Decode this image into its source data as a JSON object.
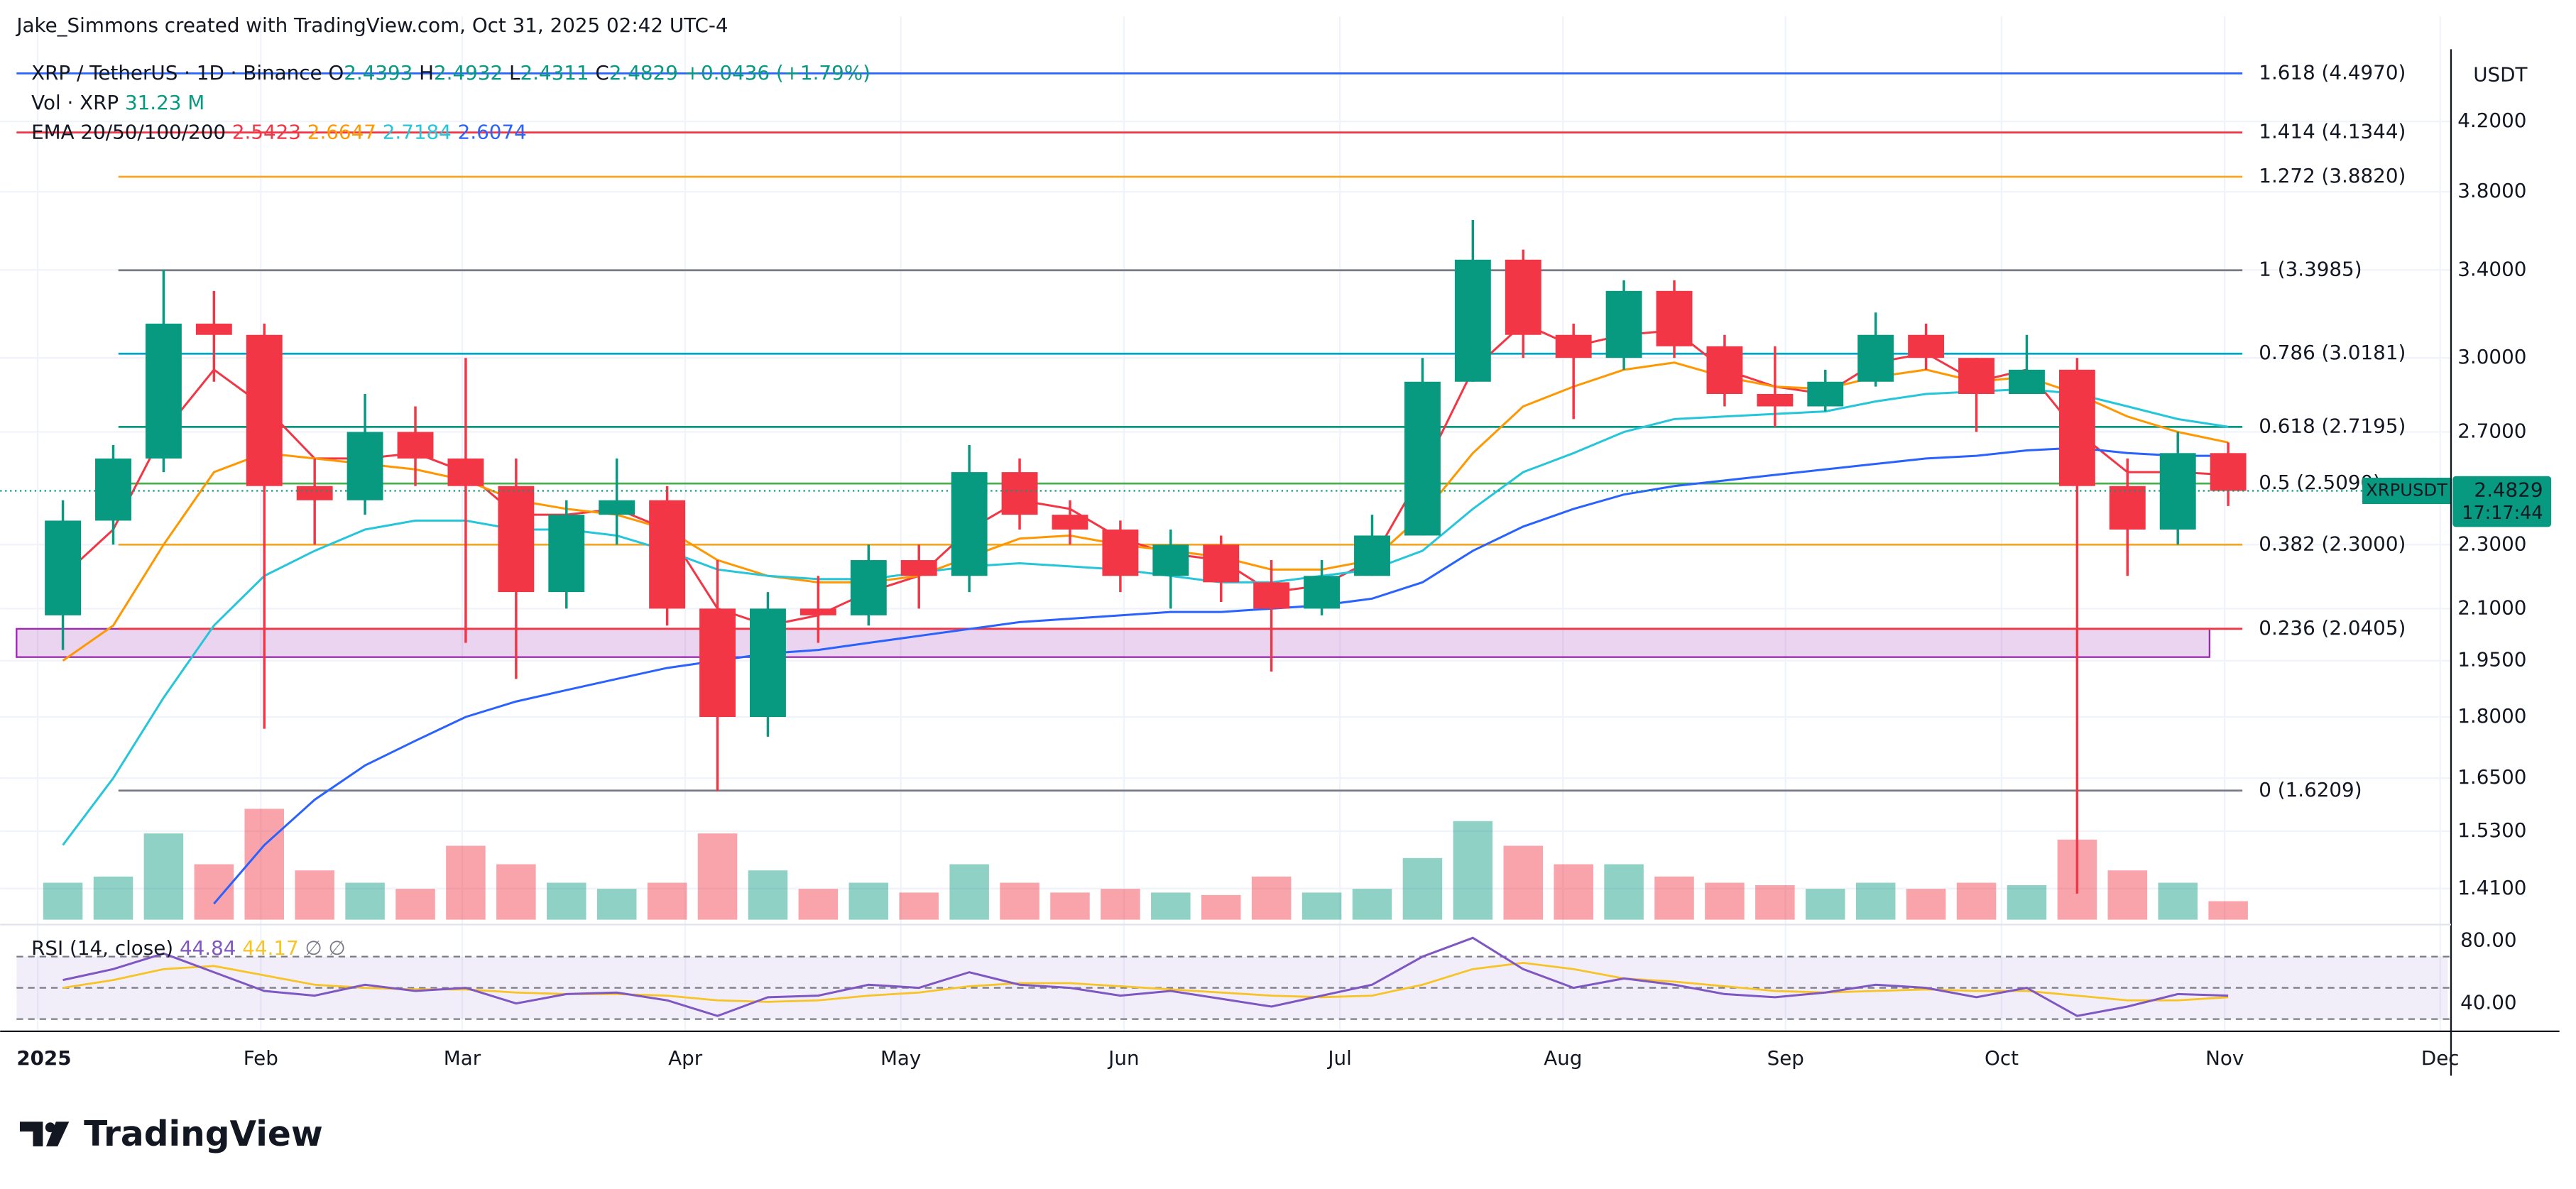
{
  "chart_data": {
    "type": "candlestick",
    "attribution": "Jake_Simmons created with TradingView.com, Oct 31, 2025 02:42 UTC-4",
    "title": "XRP / TetherUS · 1D · Binance",
    "last_bar": {
      "labels": [
        "O",
        "H",
        "L",
        "C"
      ],
      "values": [
        2.4393,
        2.4932,
        2.4311,
        2.4829
      ],
      "change": "+0.0436 (+1.79%)"
    },
    "currency": "USDT",
    "symbol": "XRPUSDT",
    "countdown": "17:17:44",
    "up_color": "#089981",
    "down_color": "#f23645",
    "open": [
      2.08,
      2.38,
      2.6,
      3.15,
      3.1,
      2.5,
      2.45,
      2.7,
      2.6,
      2.5,
      2.15,
      2.4,
      2.45,
      2.1,
      1.8,
      2.1,
      2.08,
      2.25,
      2.2,
      2.55,
      2.4,
      2.35,
      2.2,
      2.3,
      2.18,
      2.1,
      2.2,
      2.33,
      2.9,
      3.45,
      3.1,
      3.0,
      3.3,
      3.05,
      2.85,
      2.8,
      2.9,
      3.1,
      3.0,
      2.85,
      2.95,
      2.5,
      2.35,
      2.62
    ],
    "high": [
      2.45,
      2.65,
      3.4,
      3.3,
      3.15,
      2.6,
      2.85,
      2.8,
      3.0,
      2.6,
      2.45,
      2.6,
      2.5,
      2.25,
      2.15,
      2.2,
      2.3,
      2.3,
      2.65,
      2.6,
      2.45,
      2.38,
      2.35,
      2.33,
      2.25,
      2.25,
      2.4,
      3.0,
      3.65,
      3.5,
      3.15,
      3.35,
      3.35,
      3.1,
      3.05,
      2.95,
      3.2,
      3.15,
      3.0,
      3.1,
      3.0,
      2.6,
      2.7,
      2.66
    ],
    "low": [
      1.98,
      2.3,
      2.55,
      2.9,
      1.77,
      2.3,
      2.4,
      2.5,
      2.0,
      1.9,
      2.1,
      2.3,
      2.05,
      1.62,
      1.75,
      2.0,
      2.05,
      2.1,
      2.15,
      2.35,
      2.3,
      2.15,
      2.1,
      2.12,
      1.92,
      2.08,
      2.2,
      2.33,
      2.9,
      3.0,
      2.75,
      2.95,
      3.0,
      2.8,
      2.72,
      2.78,
      2.88,
      2.95,
      2.7,
      2.85,
      1.4,
      2.2,
      2.3,
      2.43
    ],
    "close": [
      2.38,
      2.6,
      3.15,
      3.1,
      2.5,
      2.45,
      2.7,
      2.6,
      2.5,
      2.15,
      2.4,
      2.45,
      2.1,
      1.8,
      2.1,
      2.08,
      2.25,
      2.2,
      2.55,
      2.4,
      2.35,
      2.2,
      2.3,
      2.18,
      2.1,
      2.2,
      2.33,
      2.9,
      3.45,
      3.1,
      3.0,
      3.3,
      3.05,
      2.85,
      2.8,
      2.9,
      3.1,
      3.0,
      2.85,
      2.95,
      2.5,
      2.35,
      2.62,
      2.4829
    ],
    "ema_label": "EMA 20/50/100/200",
    "series": [
      {
        "color": "#f23645",
        "last": 2.5423,
        "values": [
          2.2,
          2.35,
          2.7,
          2.95,
          2.8,
          2.6,
          2.6,
          2.62,
          2.55,
          2.4,
          2.4,
          2.42,
          2.35,
          2.1,
          2.05,
          2.08,
          2.15,
          2.2,
          2.35,
          2.45,
          2.42,
          2.32,
          2.27,
          2.25,
          2.15,
          2.17,
          2.25,
          2.55,
          2.95,
          3.15,
          3.05,
          3.1,
          3.12,
          2.95,
          2.88,
          2.85,
          2.98,
          3.02,
          2.9,
          2.95,
          2.7,
          2.55,
          2.55,
          2.54
        ]
      },
      {
        "color": "#ff9800",
        "last": 2.6647,
        "values": [
          1.95,
          2.05,
          2.3,
          2.55,
          2.62,
          2.6,
          2.58,
          2.56,
          2.52,
          2.45,
          2.42,
          2.4,
          2.35,
          2.25,
          2.2,
          2.18,
          2.18,
          2.2,
          2.26,
          2.32,
          2.33,
          2.3,
          2.28,
          2.26,
          2.22,
          2.22,
          2.25,
          2.4,
          2.62,
          2.8,
          2.88,
          2.95,
          2.98,
          2.92,
          2.88,
          2.87,
          2.92,
          2.95,
          2.9,
          2.92,
          2.85,
          2.76,
          2.7,
          2.66
        ]
      },
      {
        "color": "#26c6da",
        "last": 2.7184,
        "values": [
          1.5,
          1.65,
          1.85,
          2.05,
          2.2,
          2.28,
          2.35,
          2.38,
          2.38,
          2.35,
          2.35,
          2.33,
          2.28,
          2.22,
          2.2,
          2.19,
          2.19,
          2.21,
          2.23,
          2.24,
          2.23,
          2.22,
          2.2,
          2.18,
          2.18,
          2.2,
          2.22,
          2.28,
          2.42,
          2.55,
          2.62,
          2.7,
          2.75,
          2.76,
          2.77,
          2.78,
          2.82,
          2.85,
          2.86,
          2.87,
          2.85,
          2.8,
          2.75,
          2.72
        ]
      },
      {
        "color": "#2962ff",
        "last": 2.6074,
        "values": [
          null,
          null,
          null,
          1.38,
          1.5,
          1.6,
          1.68,
          1.74,
          1.8,
          1.84,
          1.87,
          1.9,
          1.93,
          1.95,
          1.97,
          1.98,
          2.0,
          2.02,
          2.04,
          2.06,
          2.07,
          2.08,
          2.09,
          2.09,
          2.1,
          2.11,
          2.13,
          2.18,
          2.28,
          2.36,
          2.42,
          2.47,
          2.5,
          2.52,
          2.54,
          2.56,
          2.58,
          2.6,
          2.61,
          2.63,
          2.64,
          2.62,
          2.61,
          2.61
        ]
      }
    ],
    "volume": {
      "label": "Vol · XRP",
      "last": "31.23 M",
      "ylim": [
        0,
        1200
      ],
      "values": [
        300,
        350,
        700,
        450,
        900,
        400,
        300,
        250,
        600,
        450,
        300,
        250,
        300,
        700,
        400,
        250,
        300,
        220,
        450,
        300,
        220,
        250,
        220,
        200,
        350,
        220,
        250,
        500,
        800,
        600,
        450,
        450,
        350,
        300,
        280,
        250,
        300,
        250,
        300,
        280,
        650,
        400,
        300,
        150
      ]
    },
    "fib_levels": [
      {
        "value": 4.497,
        "label": "1.618 (4.4970)",
        "color": "#2962ff"
      },
      {
        "value": 4.1344,
        "label": "1.414 (4.1344)",
        "color": "#f23645"
      },
      {
        "value": 3.882,
        "label": "1.272 (3.8820)",
        "color": "#f5a623"
      },
      {
        "value": 3.3985,
        "label": "1 (3.3985)",
        "color": "#787b86"
      },
      {
        "value": 3.0181,
        "label": "0.786 (3.0181)",
        "color": "#00a6c8"
      },
      {
        "value": 2.7195,
        "label": "0.618 (2.7195)",
        "color": "#089981"
      },
      {
        "value": 2.509,
        "label": "0.5 (2.5090)",
        "color": "#4caf50"
      },
      {
        "value": 2.3,
        "label": "0.382 (2.3000)",
        "color": "#f5a623"
      },
      {
        "value": 2.0405,
        "label": "0.236 (2.0405)",
        "color": "#f23645"
      },
      {
        "value": 1.6209,
        "label": "0 (1.6209)",
        "color": "#787b86"
      }
    ],
    "zone": [
      1.96,
      2.0405
    ],
    "log_scale": true,
    "grid": true,
    "ylim": [
      1.349,
      4.654
    ],
    "yticks": [
      {
        "value": 1.41,
        "label": "1.4100"
      },
      {
        "value": 1.53,
        "label": "1.5300"
      },
      {
        "value": 1.65,
        "label": "1.6500"
      },
      {
        "value": 1.8,
        "label": "1.8000"
      },
      {
        "value": 1.95,
        "label": "1.9500"
      },
      {
        "value": 2.1,
        "label": "2.1000"
      },
      {
        "value": 2.3,
        "label": "2.3000"
      },
      {
        "value": 2.7,
        "label": "2.7000"
      },
      {
        "value": 3,
        "label": "3.0000"
      },
      {
        "value": 3.4,
        "label": "3.4000"
      },
      {
        "value": 3.8,
        "label": "3.8000"
      },
      {
        "value": 4.2,
        "label": "4.2000"
      }
    ],
    "xlim": [
      -0.42,
      47.86
    ],
    "xticks": [
      {
        "value": 0,
        "label": "2025"
      },
      {
        "value": 4.43,
        "label": "Feb"
      },
      {
        "value": 8.43,
        "label": "Mar"
      },
      {
        "value": 12.86,
        "label": "Apr"
      },
      {
        "value": 17.14,
        "label": "May"
      },
      {
        "value": 21.57,
        "label": "Jun"
      },
      {
        "value": 25.86,
        "label": "Jul"
      },
      {
        "value": 30.29,
        "label": "Aug"
      },
      {
        "value": 34.71,
        "label": "Sep"
      },
      {
        "value": 39,
        "label": "Oct"
      },
      {
        "value": 43.43,
        "label": "Nov"
      },
      {
        "value": 47.71,
        "label": "Dec"
      }
    ],
    "rsi": {
      "label": "RSI (14, close)",
      "last": 44.84,
      "ma_last": 44.17,
      "extra": [
        "∅",
        "∅"
      ],
      "color": "#7e57c2",
      "ma_color": "#f7c325",
      "ylim": [
        25.3,
        88.4
      ],
      "levels": [
        70,
        50,
        30
      ],
      "yticks": [
        {
          "value": 80,
          "label": "80.00"
        },
        {
          "value": 40,
          "label": "40.00"
        }
      ],
      "values": [
        55,
        62,
        72,
        60,
        48,
        45,
        52,
        48,
        50,
        40,
        46,
        47,
        42,
        32,
        44,
        45,
        52,
        50,
        60,
        52,
        50,
        45,
        48,
        43,
        38,
        45,
        52,
        70,
        82,
        62,
        50,
        56,
        52,
        46,
        44,
        47,
        52,
        50,
        44,
        50,
        32,
        38,
        46,
        45
      ],
      "ma": [
        50,
        55,
        62,
        64,
        58,
        52,
        50,
        49,
        49,
        47,
        46,
        46,
        45,
        42,
        41,
        42,
        45,
        47,
        51,
        53,
        53,
        51,
        49,
        47,
        45,
        44,
        45,
        52,
        62,
        66,
        62,
        56,
        54,
        51,
        48,
        47,
        48,
        49,
        48,
        48,
        45,
        42,
        42,
        44
      ]
    },
    "brand": "TradingView"
  }
}
